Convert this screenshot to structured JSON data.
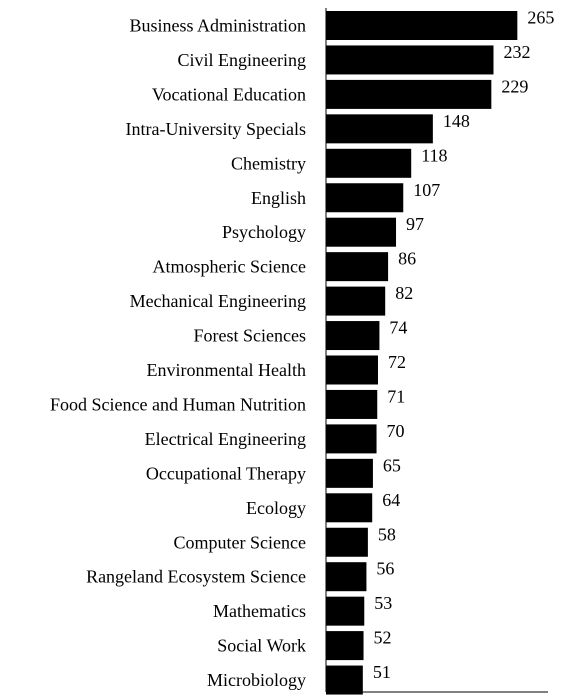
{
  "chart_data": {
    "type": "bar",
    "orientation": "horizontal",
    "categories": [
      "Business Administration",
      "Civil Engineering",
      "Vocational Education",
      "Intra-University Specials",
      "Chemistry",
      "English",
      "Psychology",
      "Atmospheric Science",
      "Mechanical Engineering",
      "Forest Sciences",
      "Environmental Health",
      "Food Science and Human Nutrition",
      "Electrical Engineering",
      "Occupational Therapy",
      "Ecology",
      "Computer Science",
      "Rangeland Ecosystem Science",
      "Mathematics",
      "Social Work",
      "Microbiology"
    ],
    "values": [
      265,
      232,
      229,
      148,
      118,
      107,
      97,
      86,
      82,
      74,
      72,
      71,
      70,
      65,
      64,
      58,
      56,
      53,
      52,
      51
    ],
    "data_labels": [
      "265",
      "232",
      "229",
      "148",
      "118",
      "107",
      "97",
      "86",
      "82",
      "74",
      "72",
      "71",
      "70",
      "65",
      "64",
      "58",
      "56",
      "53",
      "52",
      "51"
    ],
    "title": "",
    "xlabel": "",
    "ylabel": "",
    "xlim": [
      0,
      270
    ],
    "grid": false,
    "legend": "none",
    "bar_color": "#000000"
  }
}
